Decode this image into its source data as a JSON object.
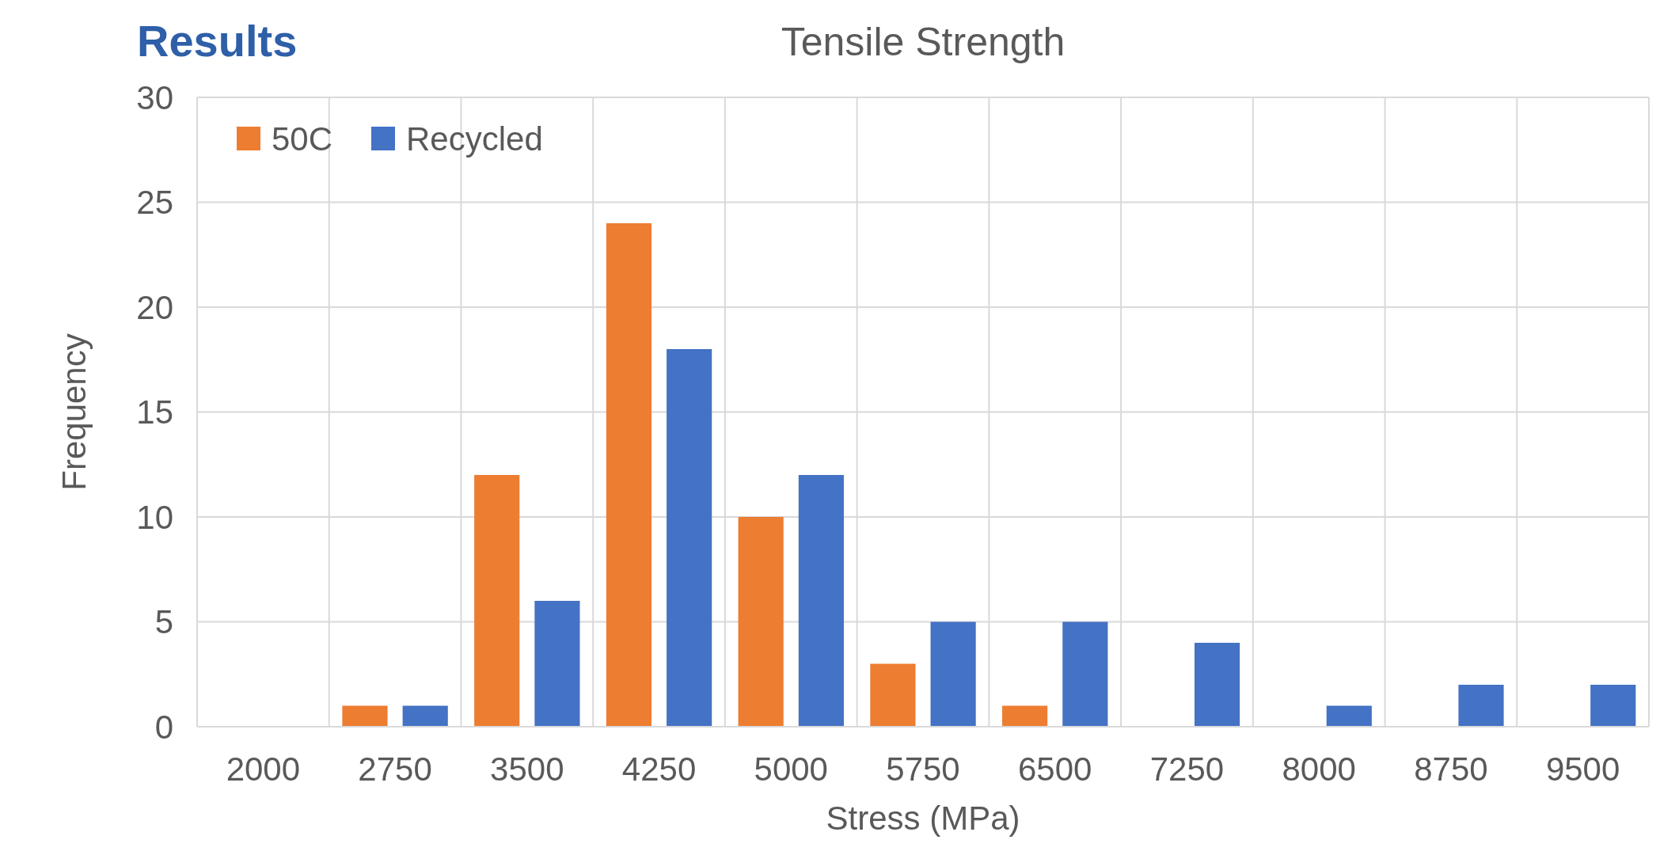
{
  "chart_data": {
    "type": "bar",
    "title": "Tensile Strength",
    "xlabel": "Stress (MPa)",
    "ylabel": "Frequency",
    "annotations": [
      "Results"
    ],
    "categories": [
      "2000",
      "2750",
      "3500",
      "4250",
      "5000",
      "5750",
      "6500",
      "7250",
      "8000",
      "8750",
      "9500"
    ],
    "series": [
      {
        "name": "50C",
        "color": "#ed7d31",
        "values": [
          0,
          1,
          12,
          24,
          10,
          3,
          1,
          0,
          0,
          0,
          0
        ]
      },
      {
        "name": "Recycled",
        "color": "#4472c4",
        "values": [
          0,
          1,
          6,
          18,
          12,
          5,
          5,
          4,
          1,
          2,
          2
        ]
      }
    ],
    "ylim": [
      0,
      30
    ],
    "yticks": [
      0,
      5,
      10,
      15,
      20,
      25,
      30
    ],
    "grid": true,
    "legend": "top left"
  }
}
